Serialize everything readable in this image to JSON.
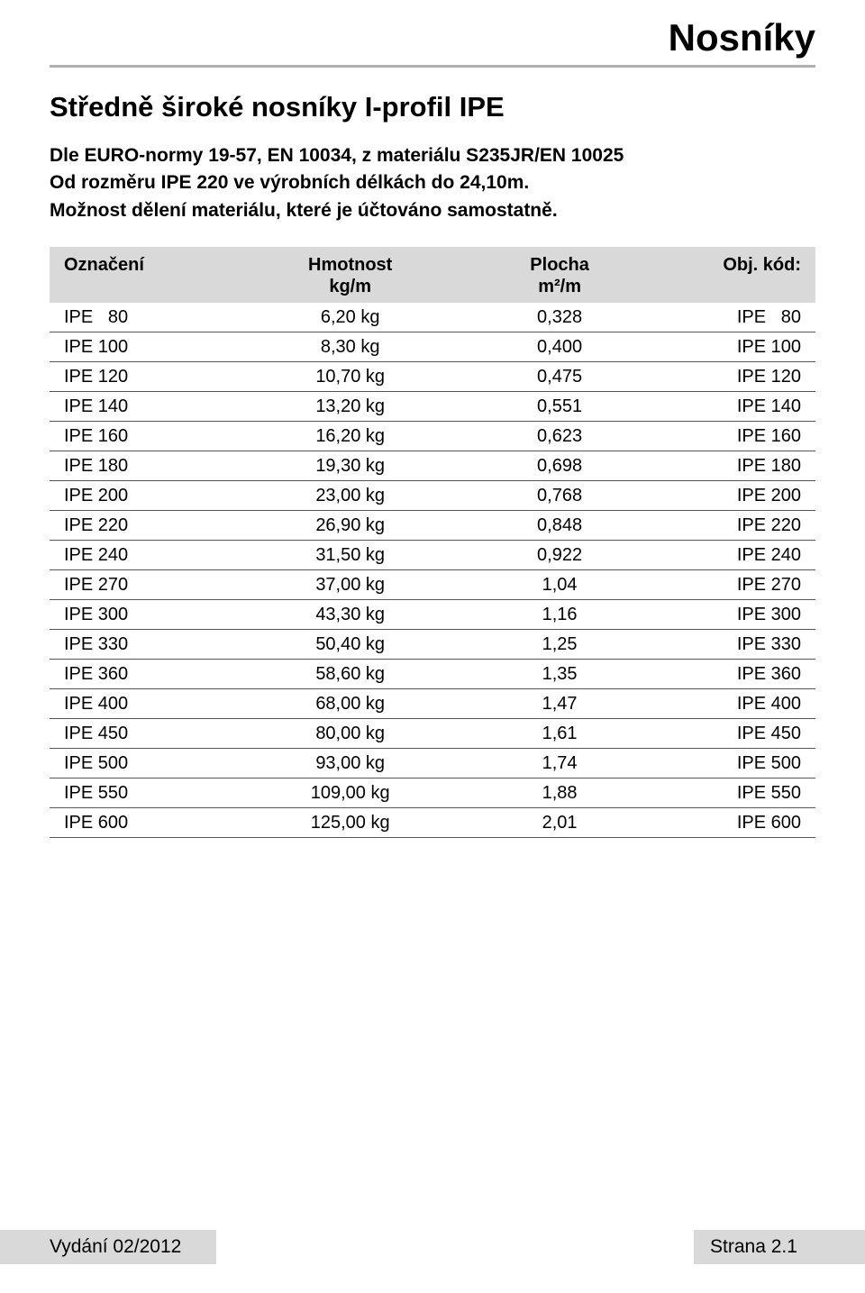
{
  "colors": {
    "text": "#000000",
    "background": "#ffffff",
    "header_bar": "#d9d9d9",
    "rule": "#b0b0b0",
    "row_border": "#555555",
    "footer_bar": "#d9d9d9"
  },
  "typography": {
    "base_family": "Arial",
    "category_title_pt": 32,
    "section_title_pt": 24,
    "body_pt": 16,
    "table_pt": 15
  },
  "header": {
    "category_title": "Nosníky",
    "section_title": "Středně široké nosníky I-profil  IPE",
    "description_lines": [
      "Dle  EURO-normy 19-57, EN 10034, z materiálu S235JR/EN 10025",
      "Od rozměru IPE 220 ve výrobních délkách do 24,10m.",
      "Možnost dělení materiálu, které je účtováno samostatně."
    ]
  },
  "table": {
    "type": "table",
    "columns": [
      {
        "key": "designation",
        "label": "Označení",
        "sublabel": "",
        "align": "left"
      },
      {
        "key": "mass",
        "label": "Hmotnost",
        "sublabel": "kg/m",
        "align": "center"
      },
      {
        "key": "area",
        "label": "Plocha",
        "sublabel": "m²/m",
        "align": "center"
      },
      {
        "key": "code",
        "label": "Obj. kód:",
        "sublabel": "",
        "align": "right"
      }
    ],
    "rows": [
      {
        "designation": "IPE   80",
        "mass": "6,20 kg",
        "area": "0,328",
        "code": "IPE   80"
      },
      {
        "designation": "IPE 100",
        "mass": "8,30 kg",
        "area": "0,400",
        "code": "IPE 100"
      },
      {
        "designation": "IPE 120",
        "mass": "10,70 kg",
        "area": "0,475",
        "code": "IPE 120"
      },
      {
        "designation": "IPE 140",
        "mass": "13,20 kg",
        "area": "0,551",
        "code": "IPE 140"
      },
      {
        "designation": "IPE 160",
        "mass": "16,20 kg",
        "area": "0,623",
        "code": "IPE 160"
      },
      {
        "designation": "IPE 180",
        "mass": "19,30 kg",
        "area": "0,698",
        "code": "IPE 180"
      },
      {
        "designation": "IPE 200",
        "mass": "23,00 kg",
        "area": "0,768",
        "code": "IPE 200"
      },
      {
        "designation": "IPE 220",
        "mass": "26,90 kg",
        "area": "0,848",
        "code": "IPE 220"
      },
      {
        "designation": "IPE 240",
        "mass": "31,50 kg",
        "area": "0,922",
        "code": "IPE 240"
      },
      {
        "designation": "IPE 270",
        "mass": "37,00 kg",
        "area": "1,04",
        "code": "IPE 270"
      },
      {
        "designation": "IPE 300",
        "mass": "43,30 kg",
        "area": "1,16",
        "code": "IPE 300"
      },
      {
        "designation": "IPE 330",
        "mass": "50,40 kg",
        "area": "1,25",
        "code": "IPE 330"
      },
      {
        "designation": "IPE 360",
        "mass": "58,60 kg",
        "area": "1,35",
        "code": "IPE 360"
      },
      {
        "designation": "IPE 400",
        "mass": "68,00 kg",
        "area": "1,47",
        "code": "IPE 400"
      },
      {
        "designation": "IPE 450",
        "mass": "80,00 kg",
        "area": "1,61",
        "code": "IPE 450"
      },
      {
        "designation": "IPE 500",
        "mass": "93,00 kg",
        "area": "1,74",
        "code": "IPE 500"
      },
      {
        "designation": "IPE 550",
        "mass": "109,00 kg",
        "area": "1,88",
        "code": "IPE 550"
      },
      {
        "designation": "IPE 600",
        "mass": "125,00 kg",
        "area": "2,01",
        "code": "IPE 600"
      }
    ]
  },
  "footer": {
    "edition": "Vydání 02/2012",
    "page": "Strana 2.1"
  }
}
